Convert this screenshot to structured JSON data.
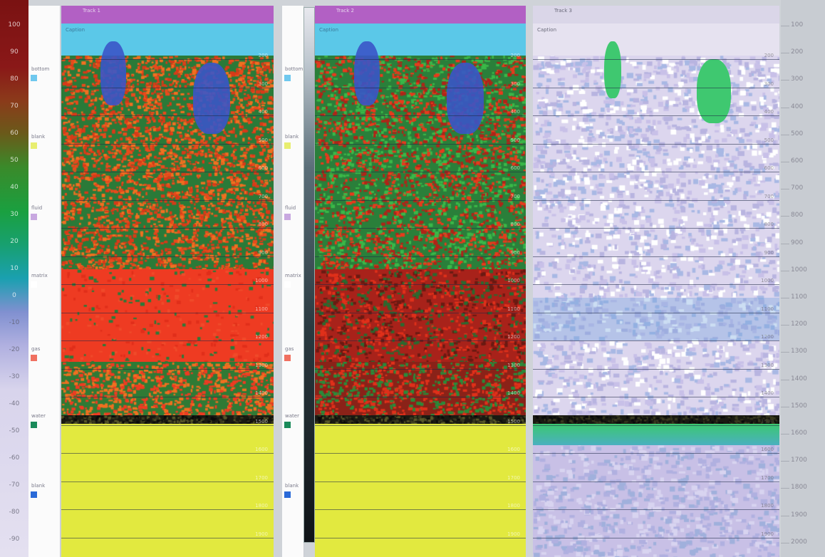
{
  "colors": {
    "title_bar": "#b260c4",
    "sub_bar": "#5bc8e8",
    "orange_red": "#ee3b22",
    "green": "#2f8b3c",
    "yellow": "#e2e93f",
    "blue_blob": "#3a55c8",
    "lavender": "#d8d4ee",
    "pale_green": "#3fc870"
  },
  "scale": {
    "ticks": [
      "100",
      "90",
      "80",
      "70",
      "60",
      "50",
      "40",
      "30",
      "20",
      "10",
      "0",
      "-10",
      "-20",
      "-30",
      "-40",
      "-50",
      "-60",
      "-70",
      "-80",
      "-90"
    ]
  },
  "legend": {
    "items": [
      {
        "label": "bottom",
        "color": "#6fc8ee"
      },
      {
        "label": "blank",
        "color": "#e8ee70"
      },
      {
        "label": "fluid",
        "color": "#c8a8e0"
      },
      {
        "label": "matrix",
        "color": "#ffffff"
      },
      {
        "label": "gas",
        "color": "#f07060"
      },
      {
        "label": "water",
        "color": "#1a8a5a"
      },
      {
        "label": "blank",
        "color": "#2a6ad8"
      }
    ]
  },
  "panels": [
    {
      "title": "Track 1",
      "subtitle": "Caption",
      "icon": "track-icon"
    },
    {
      "title": "Track 2",
      "subtitle": "Caption",
      "icon": "track-icon"
    },
    {
      "title": "Track 3",
      "subtitle": "Caption",
      "icon": "track-icon"
    }
  ],
  "panel_ticks": [
    "200",
    "300",
    "400",
    "500",
    "600",
    "700",
    "800",
    "900",
    "1000",
    "1100",
    "1200",
    "1300",
    "1400",
    "1500",
    "1600",
    "1700",
    "1800",
    "1900"
  ],
  "axis": {
    "depths": [
      "100",
      "200",
      "300",
      "400",
      "500",
      "600",
      "700",
      "800",
      "900",
      "1000",
      "1100",
      "1200",
      "1300",
      "1400",
      "1500",
      "1600",
      "1700",
      "1800",
      "1900",
      "2000"
    ]
  }
}
